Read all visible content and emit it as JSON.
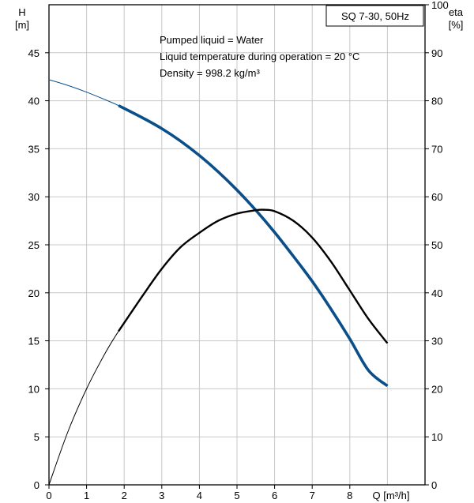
{
  "chart_data": {
    "type": "line",
    "title": "SQ 7-30, 50Hz",
    "annotations": [
      "Pumped liquid = Water",
      "Liquid temperature during operation = 20 °C",
      "Density = 998.2 kg/m³"
    ],
    "xlabel": "Q [m³/h]",
    "ylabel_left": [
      "H",
      "[m]"
    ],
    "ylabel_right": [
      "eta",
      "[%]"
    ],
    "xlim": [
      0,
      10
    ],
    "ylim_left": [
      0,
      50
    ],
    "ylim_right": [
      0,
      100
    ],
    "grid": true,
    "x_ticks": [
      0,
      1,
      2,
      3,
      4,
      5,
      6,
      7,
      8
    ],
    "y_ticks_left": [
      0,
      5,
      10,
      15,
      20,
      25,
      30,
      35,
      40,
      45
    ],
    "y_ticks_right": [
      0,
      10,
      20,
      30,
      40,
      50,
      60,
      70,
      80,
      90,
      100
    ],
    "series": [
      {
        "axis": "left",
        "color": "#0b4f8a",
        "operating_range": [
          1.85,
          9.0
        ],
        "points": [
          [
            0,
            42.2
          ],
          [
            0.5,
            41.6
          ],
          [
            1.0,
            40.9
          ],
          [
            1.5,
            40.1
          ],
          [
            1.85,
            39.5
          ],
          [
            2.5,
            38.2
          ],
          [
            3.0,
            37.1
          ],
          [
            3.5,
            35.8
          ],
          [
            4.0,
            34.3
          ],
          [
            4.5,
            32.6
          ],
          [
            5.0,
            30.7
          ],
          [
            5.5,
            28.6
          ],
          [
            6.0,
            26.3
          ],
          [
            6.5,
            23.8
          ],
          [
            7.0,
            21.2
          ],
          [
            7.5,
            18.3
          ],
          [
            8.0,
            15.2
          ],
          [
            8.5,
            11.9
          ],
          [
            9.0,
            10.3
          ]
        ]
      },
      {
        "axis": "right",
        "color": "#000000",
        "operating_range": [
          1.85,
          9.0
        ],
        "points": [
          [
            0,
            0
          ],
          [
            0.5,
            11
          ],
          [
            1.0,
            20
          ],
          [
            1.5,
            27.5
          ],
          [
            1.85,
            32
          ],
          [
            2.5,
            39.5
          ],
          [
            3.0,
            45
          ],
          [
            3.5,
            49.5
          ],
          [
            4.0,
            52.5
          ],
          [
            4.5,
            55
          ],
          [
            5.0,
            56.5
          ],
          [
            5.5,
            57.2
          ],
          [
            5.7,
            57.3
          ],
          [
            6.0,
            57
          ],
          [
            6.5,
            55
          ],
          [
            7.0,
            51.5
          ],
          [
            7.5,
            46.5
          ],
          [
            8.0,
            40.5
          ],
          [
            8.5,
            34.5
          ],
          [
            9.0,
            29.5
          ]
        ]
      }
    ]
  }
}
